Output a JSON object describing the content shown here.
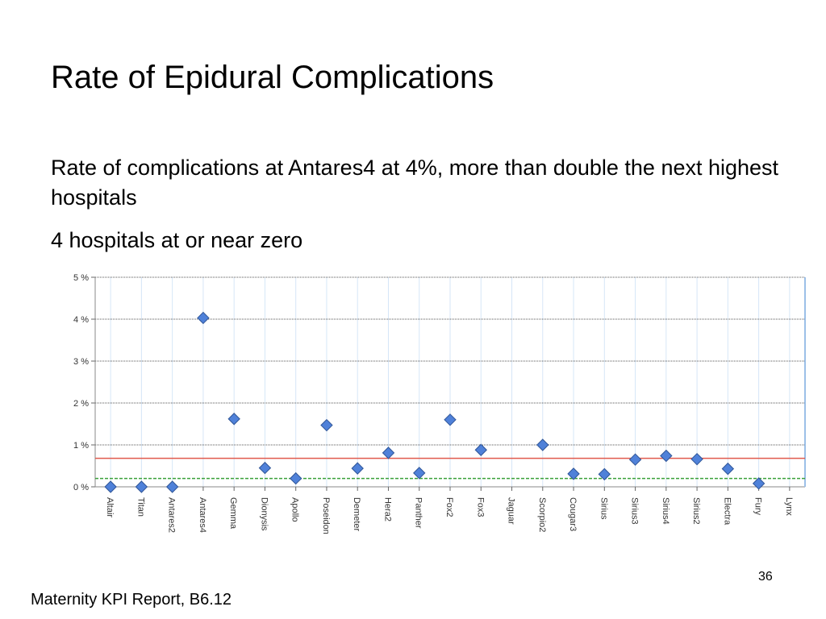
{
  "slide": {
    "title": "Rate of Epidural Complications",
    "bullets": [
      "Rate of complications at Antares4 at 4%, more than double the next highest hospitals",
      "4 hospitals at or near zero"
    ],
    "footer": "Maternity KPI Report, B6.12",
    "page_number": "36"
  },
  "chart_data": {
    "type": "scatter",
    "title": "",
    "xlabel": "",
    "ylabel": "",
    "ylim": [
      0,
      5
    ],
    "yticks": [
      "0 %",
      "1 %",
      "2 %",
      "3 %",
      "4 %",
      "5 %"
    ],
    "grid": true,
    "categories": [
      "Altair",
      "Titan",
      "Antares2",
      "Antares4",
      "Gemma",
      "Dionysis",
      "Apollo",
      "Poseidon",
      "Demeter",
      "Hera2",
      "Panther",
      "Fox2",
      "Fox3",
      "Jaguar",
      "Scorpio2",
      "Cougar3",
      "Sirius",
      "Sirius3",
      "Sirius4",
      "Sirius2",
      "Electra",
      "Fury",
      "Lynx"
    ],
    "values": [
      0,
      0,
      0,
      4.03,
      1.62,
      0.45,
      0.2,
      1.47,
      0.44,
      0.81,
      0.33,
      1.6,
      0.88,
      null,
      1.0,
      0.31,
      0.3,
      0.65,
      0.74,
      0.66,
      0.43,
      0.08,
      null
    ],
    "reference_lines": [
      {
        "value": 0.68,
        "color": "#e05a4e",
        "style": "solid"
      },
      {
        "value": 0.2,
        "color": "#3aa13a",
        "style": "dashed"
      }
    ],
    "marker_color": "#4f81d9"
  }
}
